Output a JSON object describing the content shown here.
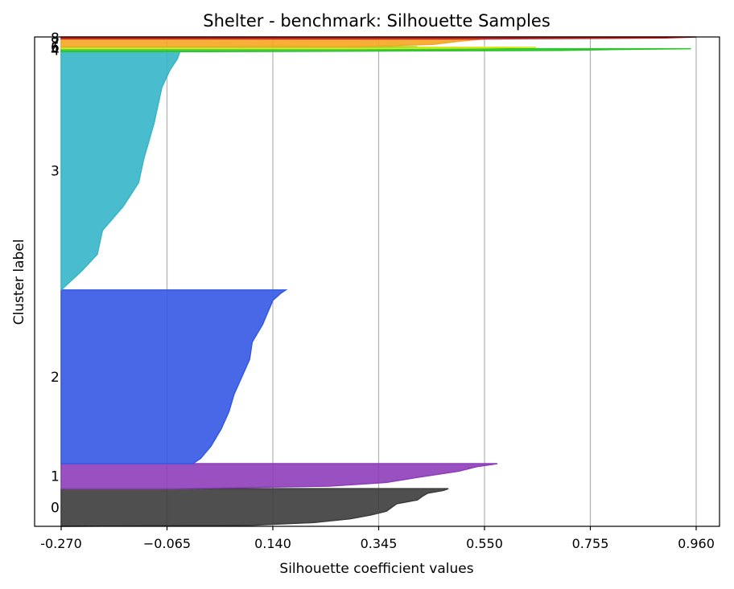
{
  "chart_data": {
    "type": "area",
    "title": "Shelter - benchmark: Silhouette Samples",
    "xlabel": "Silhouette coefficient values",
    "ylabel": "Cluster label",
    "xlim": [
      -0.27,
      0.96
    ],
    "xticks": [
      "-0.270",
      "−0.065",
      "0.140",
      "0.345",
      "0.550",
      "0.755",
      "0.960"
    ],
    "xtick_values": [
      -0.27,
      -0.065,
      0.14,
      0.345,
      0.55,
      0.755,
      0.96
    ],
    "grid": "vertical",
    "total_samples": 1000,
    "clusters": [
      {
        "label": "0",
        "color": "#3c3c3c",
        "start": 0,
        "end": 77,
        "profile": [
          [
            0,
            0.48
          ],
          [
            0.05,
            0.47
          ],
          [
            0.12,
            0.44
          ],
          [
            0.2,
            0.43
          ],
          [
            0.3,
            0.42
          ],
          [
            0.4,
            0.38
          ],
          [
            0.5,
            0.37
          ],
          [
            0.6,
            0.36
          ],
          [
            0.7,
            0.33
          ],
          [
            0.8,
            0.29
          ],
          [
            0.9,
            0.22
          ],
          [
            0.97,
            0.1
          ],
          [
            1,
            -0.27
          ]
        ]
      },
      {
        "label": "1",
        "color": "#8e3dba",
        "start": 77,
        "end": 128,
        "profile": [
          [
            0,
            0.575
          ],
          [
            0.03,
            0.565
          ],
          [
            0.12,
            0.535
          ],
          [
            0.3,
            0.5
          ],
          [
            0.55,
            0.42
          ],
          [
            0.75,
            0.36
          ],
          [
            0.9,
            0.25
          ],
          [
            1,
            -0.05
          ]
        ]
      },
      {
        "label": "2",
        "color": "#3458e6",
        "start": 128,
        "end": 483,
        "profile": [
          [
            0,
            0.165
          ],
          [
            0.02,
            0.155
          ],
          [
            0.06,
            0.14
          ],
          [
            0.2,
            0.12
          ],
          [
            0.3,
            0.1
          ],
          [
            0.4,
            0.095
          ],
          [
            0.5,
            0.08
          ],
          [
            0.6,
            0.065
          ],
          [
            0.7,
            0.055
          ],
          [
            0.8,
            0.04
          ],
          [
            0.9,
            0.02
          ],
          [
            0.97,
            0.0
          ],
          [
            1,
            -0.015
          ]
        ]
      },
      {
        "label": "3",
        "color": "#35b6c8",
        "start": 483,
        "end": 970,
        "profile": [
          [
            0,
            -0.04
          ],
          [
            0.03,
            -0.045
          ],
          [
            0.08,
            -0.06
          ],
          [
            0.15,
            -0.075
          ],
          [
            0.3,
            -0.09
          ],
          [
            0.45,
            -0.11
          ],
          [
            0.55,
            -0.12
          ],
          [
            0.65,
            -0.15
          ],
          [
            0.7,
            -0.17
          ],
          [
            0.75,
            -0.19
          ],
          [
            0.85,
            -0.2
          ],
          [
            0.92,
            -0.23
          ],
          [
            1,
            -0.27
          ]
        ]
      },
      {
        "label": "4",
        "color": "#2cc42c",
        "start": 970,
        "end": 976,
        "profile": [
          [
            0,
            0.95
          ],
          [
            0.3,
            0.79
          ],
          [
            0.6,
            0.7
          ],
          [
            1,
            0.0
          ]
        ]
      },
      {
        "label": "5",
        "color": "#d4e81c",
        "start": 976,
        "end": 979,
        "profile": [
          [
            0,
            0.65
          ],
          [
            0.5,
            0.55
          ],
          [
            1,
            0.3
          ]
        ]
      },
      {
        "label": "6",
        "color": "#9dd62a",
        "start": 979,
        "end": 980,
        "profile": [
          [
            0,
            0.42
          ],
          [
            1,
            0.35
          ]
        ]
      },
      {
        "label": "7",
        "color": "#f5a623",
        "start": 980,
        "end": 996,
        "profile": [
          [
            0,
            0.55
          ],
          [
            0.3,
            0.5
          ],
          [
            0.7,
            0.45
          ],
          [
            1,
            0.3
          ]
        ]
      },
      {
        "label": "8",
        "color": "#c81e1e",
        "start": 996,
        "end": 1000,
        "profile": [
          [
            0,
            0.96
          ],
          [
            0.5,
            0.9
          ],
          [
            1,
            0.55
          ]
        ]
      }
    ]
  }
}
